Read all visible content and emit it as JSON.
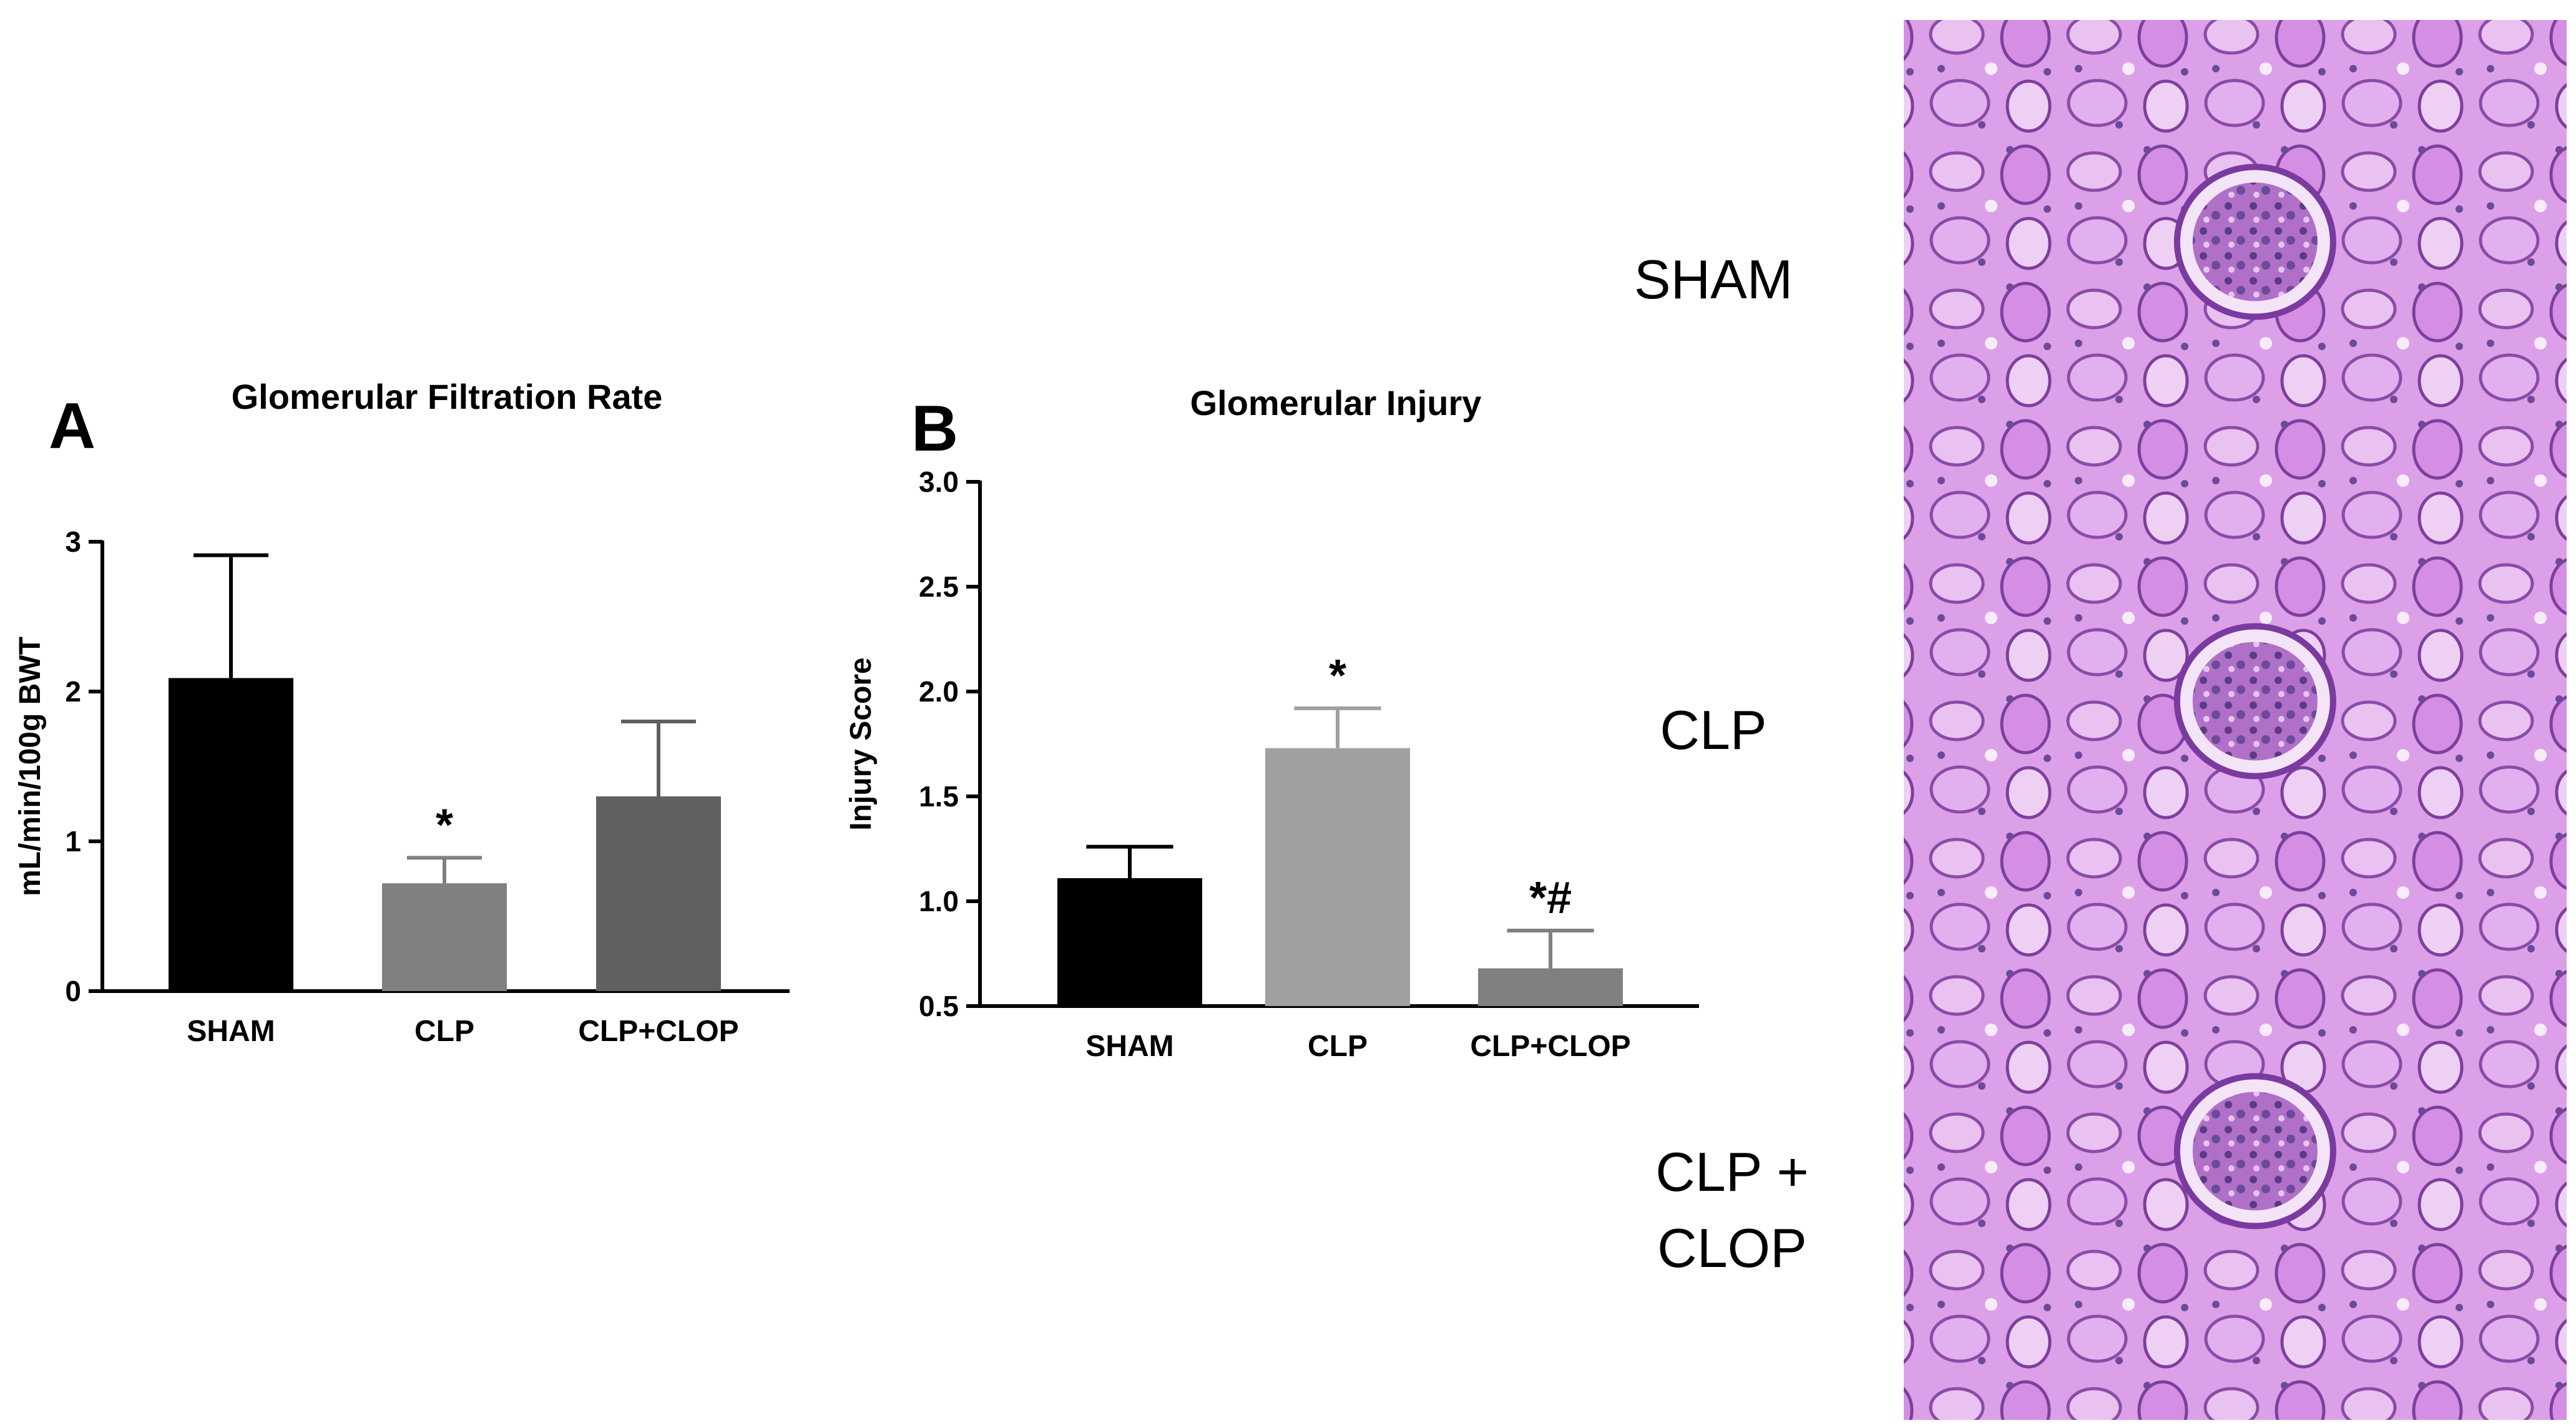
{
  "chart_data": [
    {
      "type": "bar",
      "panel_letter": "A",
      "title": "Glomerular Filtration Rate",
      "ylabel": "mL/min/100g BWT",
      "xlabel": "",
      "categories": [
        "SHAM",
        "CLP",
        "CLP+CLOP"
      ],
      "values": [
        2.09,
        0.72,
        1.3
      ],
      "errors": [
        0.82,
        0.17,
        0.5
      ],
      "annotations": [
        "",
        "*",
        ""
      ],
      "colors": [
        "#000000",
        "#808080",
        "#606060"
      ],
      "ylim": [
        0,
        3
      ],
      "yticks": [
        0,
        1,
        2,
        3
      ],
      "ytick_labels": [
        "0",
        "1",
        "2",
        "3"
      ],
      "grid": false
    },
    {
      "type": "bar",
      "panel_letter": "B",
      "title": "Glomerular Injury",
      "ylabel": "Injury Score",
      "xlabel": "",
      "categories": [
        "SHAM",
        "CLP",
        "CLP+CLOP"
      ],
      "values": [
        1.11,
        1.73,
        0.68
      ],
      "errors": [
        0.15,
        0.19,
        0.18
      ],
      "annotations": [
        "",
        "*",
        "*#"
      ],
      "colors": [
        "#000000",
        "#a0a0a0",
        "#808080"
      ],
      "ylim": [
        0.5,
        3.0
      ],
      "yticks": [
        0.5,
        1.0,
        1.5,
        2.0,
        2.5,
        3.0
      ],
      "ytick_labels": [
        "0.5",
        "1.0",
        "1.5",
        "2.0",
        "2.5",
        "3.0"
      ],
      "grid": false
    }
  ],
  "micrographs": {
    "labels": [
      "SHAM",
      "CLP",
      "CLP +\nCLOP"
    ],
    "tissue_color": "#d99ae6"
  }
}
